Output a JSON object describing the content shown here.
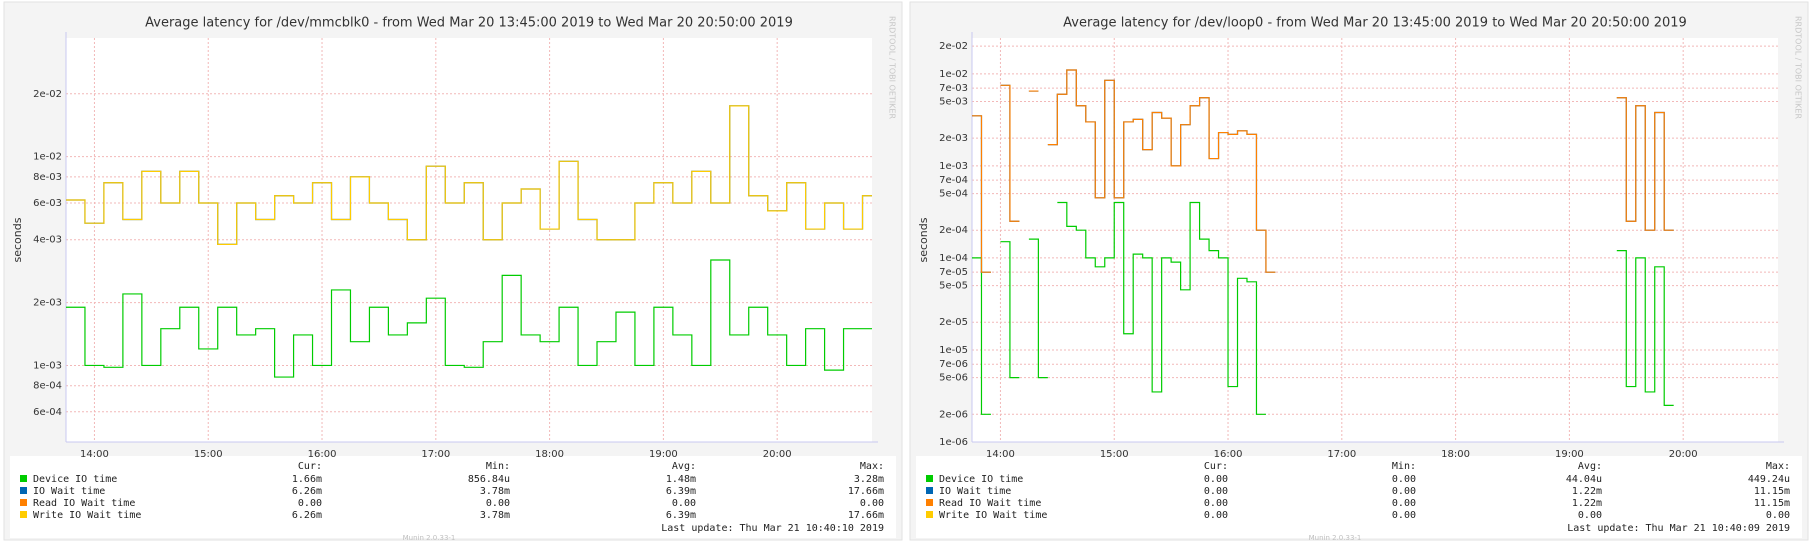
{
  "chart_data": [
    {
      "type": "line",
      "yscale": "log",
      "grid": true,
      "title": "Average latency for /dev/mmcblk0 - from Wed Mar 20 13:45:00 2019 to Wed Mar 20 20:50:00 2019",
      "ylabel": "seconds",
      "side_text": "RRDTOOL / TOBI OETIKER",
      "stat_headers": [
        "Cur:",
        "Min:",
        "Avg:",
        "Max:"
      ],
      "last_update": "Last update: Thu Mar 21 10:40:10 2019",
      "footer": "Munin 2.0.33-1",
      "xlim": [
        825,
        1250
      ],
      "ylim": [
        0.00043,
        0.037
      ],
      "xticks": [
        {
          "value": 840,
          "label": "14:00"
        },
        {
          "value": 900,
          "label": "15:00"
        },
        {
          "value": 960,
          "label": "16:00"
        },
        {
          "value": 1020,
          "label": "17:00"
        },
        {
          "value": 1080,
          "label": "18:00"
        },
        {
          "value": 1140,
          "label": "19:00"
        },
        {
          "value": 1200,
          "label": "20:00"
        }
      ],
      "yticks": [
        {
          "value": 0.02,
          "label": "2e-02"
        },
        {
          "value": 0.01,
          "label": "1e-02"
        },
        {
          "value": 0.008,
          "label": "8e-03"
        },
        {
          "value": 0.006,
          "label": "6e-03"
        },
        {
          "value": 0.004,
          "label": "4e-03"
        },
        {
          "value": 0.002,
          "label": "2e-03"
        },
        {
          "value": 0.001,
          "label": "1e-03"
        },
        {
          "value": 0.0008,
          "label": "8e-04"
        },
        {
          "value": 0.0006,
          "label": "6e-04"
        }
      ],
      "x": [
        825,
        835,
        845,
        855,
        865,
        875,
        885,
        895,
        905,
        915,
        925,
        935,
        945,
        955,
        965,
        975,
        985,
        995,
        1005,
        1015,
        1025,
        1035,
        1045,
        1055,
        1065,
        1075,
        1085,
        1095,
        1105,
        1115,
        1125,
        1135,
        1145,
        1155,
        1165,
        1175,
        1185,
        1195,
        1205,
        1215,
        1225,
        1235,
        1245
      ],
      "series": [
        {
          "name": "Device IO time",
          "color": "#00cc00",
          "stats": [
            "1.66m",
            "856.84u",
            "1.48m",
            "3.28m"
          ],
          "values": [
            0.0019,
            0.001,
            0.00098,
            0.0022,
            0.001,
            0.0015,
            0.0019,
            0.0012,
            0.0019,
            0.0014,
            0.0015,
            0.00088,
            0.0014,
            0.001,
            0.0023,
            0.0013,
            0.0019,
            0.0014,
            0.0016,
            0.0021,
            0.001,
            0.00098,
            0.0013,
            0.0027,
            0.0014,
            0.0013,
            0.0019,
            0.001,
            0.0013,
            0.0018,
            0.001,
            0.0019,
            0.0014,
            0.001,
            0.0032,
            0.0014,
            0.0019,
            0.0014,
            0.001,
            0.0015,
            0.00095,
            0.0015,
            0.0015
          ]
        },
        {
          "name": "IO Wait time",
          "color": "#0066b3",
          "stats": [
            "6.26m",
            "3.78m",
            "6.39m",
            "17.66m"
          ],
          "values": [
            0.0062,
            0.0048,
            0.0075,
            0.005,
            0.0085,
            0.006,
            0.0085,
            0.006,
            0.0038,
            0.006,
            0.005,
            0.0065,
            0.006,
            0.0075,
            0.005,
            0.008,
            0.006,
            0.005,
            0.004,
            0.009,
            0.006,
            0.0075,
            0.004,
            0.006,
            0.007,
            0.0045,
            0.0095,
            0.005,
            0.004,
            0.004,
            0.006,
            0.0075,
            0.006,
            0.0085,
            0.006,
            0.0175,
            0.0065,
            0.0055,
            0.0075,
            0.0045,
            0.006,
            0.0045,
            0.0065
          ]
        },
        {
          "name": "Read IO Wait time",
          "color": "#ff8000",
          "stats": [
            "0.00",
            "0.00",
            "0.00",
            "0.00"
          ],
          "values": [
            null,
            null,
            null,
            null,
            null,
            null,
            null,
            null,
            null,
            null,
            null,
            null,
            null,
            null,
            null,
            null,
            null,
            null,
            null,
            null,
            null,
            null,
            null,
            null,
            null,
            null,
            null,
            null,
            null,
            null,
            null,
            null,
            null,
            null,
            null,
            null,
            null,
            null,
            null,
            null,
            null,
            null,
            null
          ]
        },
        {
          "name": "Write IO Wait time",
          "color": "#ffcc00",
          "stats": [
            "6.26m",
            "3.78m",
            "6.39m",
            "17.66m"
          ],
          "values": [
            0.0062,
            0.0048,
            0.0075,
            0.005,
            0.0085,
            0.006,
            0.0085,
            0.006,
            0.0038,
            0.006,
            0.005,
            0.0065,
            0.006,
            0.0075,
            0.005,
            0.008,
            0.006,
            0.005,
            0.004,
            0.009,
            0.006,
            0.0075,
            0.004,
            0.006,
            0.007,
            0.0045,
            0.0095,
            0.005,
            0.004,
            0.004,
            0.006,
            0.0075,
            0.006,
            0.0085,
            0.006,
            0.0175,
            0.0065,
            0.0055,
            0.0075,
            0.0045,
            0.006,
            0.0045,
            0.0065
          ]
        }
      ]
    },
    {
      "type": "line",
      "yscale": "log",
      "grid": true,
      "title": "Average latency for /dev/loop0 - from Wed Mar 20 13:45:00 2019 to Wed Mar 20 20:50:00 2019",
      "ylabel": "seconds",
      "side_text": "RRDTOOL / TOBI OETIKER",
      "stat_headers": [
        "Cur:",
        "Min:",
        "Avg:",
        "Max:"
      ],
      "last_update": "Last update: Thu Mar 21 10:40:09 2019",
      "footer": "Munin 2.0.33-1",
      "xlim": [
        825,
        1250
      ],
      "ylim": [
        1e-06,
        0.0245
      ],
      "xticks": [
        {
          "value": 840,
          "label": "14:00"
        },
        {
          "value": 900,
          "label": "15:00"
        },
        {
          "value": 960,
          "label": "16:00"
        },
        {
          "value": 1020,
          "label": "17:00"
        },
        {
          "value": 1080,
          "label": "18:00"
        },
        {
          "value": 1140,
          "label": "19:00"
        },
        {
          "value": 1200,
          "label": "20:00"
        }
      ],
      "yticks": [
        {
          "value": 0.02,
          "label": "2e-02"
        },
        {
          "value": 0.01,
          "label": "1e-02"
        },
        {
          "value": 0.007,
          "label": "7e-03"
        },
        {
          "value": 0.005,
          "label": "5e-03"
        },
        {
          "value": 0.002,
          "label": "2e-03"
        },
        {
          "value": 0.001,
          "label": "1e-03"
        },
        {
          "value": 0.0007,
          "label": "7e-04"
        },
        {
          "value": 0.0005,
          "label": "5e-04"
        },
        {
          "value": 0.0002,
          "label": "2e-04"
        },
        {
          "value": 0.0001,
          "label": "1e-04"
        },
        {
          "value": 7e-05,
          "label": "7e-05"
        },
        {
          "value": 5e-05,
          "label": "5e-05"
        },
        {
          "value": 2e-05,
          "label": "2e-05"
        },
        {
          "value": 1e-05,
          "label": "1e-05"
        },
        {
          "value": 7e-06,
          "label": "7e-06"
        },
        {
          "value": 5e-06,
          "label": "5e-06"
        },
        {
          "value": 2e-06,
          "label": "2e-06"
        },
        {
          "value": 1e-06,
          "label": "1e-06"
        }
      ],
      "x": [
        825,
        830,
        835,
        840,
        845,
        850,
        855,
        860,
        865,
        870,
        875,
        880,
        885,
        890,
        895,
        900,
        905,
        910,
        915,
        920,
        925,
        930,
        935,
        940,
        945,
        950,
        955,
        960,
        965,
        970,
        975,
        980,
        985,
        990,
        995,
        1000,
        1005,
        1010,
        1015,
        1020,
        1025,
        1030,
        1035,
        1040,
        1045,
        1050,
        1055,
        1060,
        1065,
        1070,
        1075,
        1080,
        1085,
        1090,
        1095,
        1100,
        1105,
        1110,
        1115,
        1120,
        1125,
        1130,
        1135,
        1140,
        1145,
        1150,
        1155,
        1160,
        1165,
        1170,
        1175,
        1180,
        1185,
        1190,
        1195,
        1200,
        1205,
        1210,
        1215,
        1220,
        1225,
        1230,
        1235,
        1240,
        1245
      ],
      "series": [
        {
          "name": "Device IO time",
          "color": "#00cc00",
          "stats": [
            "0.00",
            "0.00",
            "44.04u",
            "449.24u"
          ],
          "values": [
            0.0001,
            2e-06,
            null,
            0.00015,
            5e-06,
            null,
            0.00016,
            5e-06,
            null,
            0.0004,
            0.00022,
            0.0002,
            0.0001,
            8e-05,
            0.0001,
            0.0004,
            1.5e-05,
            0.00011,
            0.0001,
            3.5e-06,
            0.0001,
            9e-05,
            4.5e-05,
            0.0004,
            0.00016,
            0.00012,
            0.0001,
            4e-06,
            6e-05,
            5.5e-05,
            2e-06,
            null,
            null,
            null,
            null,
            null,
            null,
            null,
            null,
            null,
            null,
            null,
            null,
            null,
            null,
            null,
            null,
            null,
            null,
            null,
            null,
            null,
            null,
            null,
            null,
            null,
            null,
            null,
            null,
            null,
            null,
            null,
            null,
            null,
            null,
            null,
            null,
            null,
            0.00012,
            4e-06,
            0.0001,
            3.5e-06,
            8e-05,
            2.5e-06,
            null,
            null,
            null,
            null,
            null,
            null,
            null,
            null,
            null,
            null,
            null
          ]
        },
        {
          "name": "IO Wait time",
          "color": "#0066b3",
          "stats": [
            "0.00",
            "0.00",
            "1.22m",
            "11.15m"
          ],
          "values": [
            0.0035,
            7e-05,
            null,
            0.0075,
            0.00025,
            null,
            0.0065,
            null,
            0.0017,
            0.006,
            0.011,
            0.0045,
            0.003,
            0.00045,
            0.0085,
            0.00045,
            0.003,
            0.0032,
            0.0015,
            0.0038,
            0.0033,
            0.001,
            0.0028,
            0.0045,
            0.0055,
            0.0012,
            0.0023,
            0.0022,
            0.0024,
            0.0022,
            0.0002,
            7e-05,
            null,
            null,
            null,
            null,
            null,
            null,
            null,
            null,
            null,
            null,
            null,
            null,
            null,
            null,
            null,
            null,
            null,
            null,
            null,
            null,
            null,
            null,
            null,
            null,
            null,
            null,
            null,
            null,
            null,
            null,
            null,
            null,
            null,
            null,
            null,
            null,
            0.0055,
            0.00025,
            0.0045,
            0.0002,
            0.0038,
            0.0002,
            null,
            null,
            null,
            null,
            null,
            null,
            null,
            null,
            null,
            null,
            null
          ]
        },
        {
          "name": "Read IO Wait time",
          "color": "#ff8000",
          "stats": [
            "0.00",
            "0.00",
            "1.22m",
            "11.15m"
          ],
          "values": [
            0.0035,
            7e-05,
            null,
            0.0075,
            0.00025,
            null,
            0.0065,
            null,
            0.0017,
            0.006,
            0.011,
            0.0045,
            0.003,
            0.00045,
            0.0085,
            0.00045,
            0.003,
            0.0032,
            0.0015,
            0.0038,
            0.0033,
            0.001,
            0.0028,
            0.0045,
            0.0055,
            0.0012,
            0.0023,
            0.0022,
            0.0024,
            0.0022,
            0.0002,
            7e-05,
            null,
            null,
            null,
            null,
            null,
            null,
            null,
            null,
            null,
            null,
            null,
            null,
            null,
            null,
            null,
            null,
            null,
            null,
            null,
            null,
            null,
            null,
            null,
            null,
            null,
            null,
            null,
            null,
            null,
            null,
            null,
            null,
            null,
            null,
            null,
            null,
            0.0055,
            0.00025,
            0.0045,
            0.0002,
            0.0038,
            0.0002,
            null,
            null,
            null,
            null,
            null,
            null,
            null,
            null,
            null,
            null,
            null
          ]
        },
        {
          "name": "Write IO Wait time",
          "color": "#ffcc00",
          "stats": [
            "0.00",
            "0.00",
            "0.00",
            "0.00"
          ],
          "values": [
            null,
            null,
            null,
            null,
            null,
            null,
            null,
            null,
            null,
            null,
            null,
            null,
            null,
            null,
            null,
            null,
            null,
            null,
            null,
            null,
            null,
            null,
            null,
            null,
            null,
            null,
            null,
            null,
            null,
            null,
            null,
            null,
            null,
            null,
            null,
            null,
            null,
            null,
            null,
            null,
            null,
            null,
            null,
            null,
            null,
            null,
            null,
            null,
            null,
            null,
            null,
            null,
            null,
            null,
            null,
            null,
            null,
            null,
            null,
            null,
            null,
            null,
            null,
            null,
            null,
            null,
            null,
            null,
            null,
            null,
            null,
            null,
            null,
            null,
            null,
            null,
            null,
            null,
            null,
            null,
            null,
            null,
            null,
            null,
            null
          ]
        }
      ]
    }
  ]
}
